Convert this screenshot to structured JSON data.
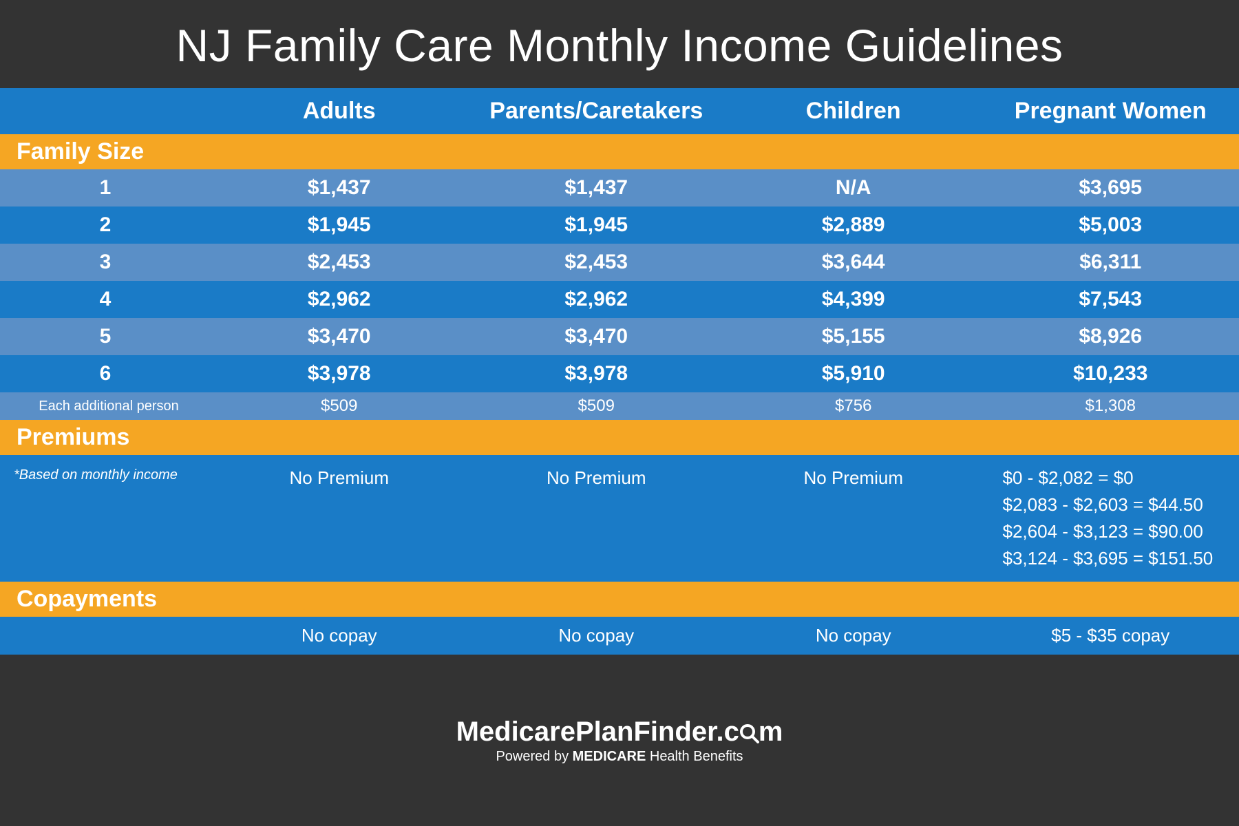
{
  "title": "NJ Family Care Monthly Income Guidelines",
  "columns": [
    "Adults",
    "Parents/Caretakers",
    "Children",
    "Pregnant Women"
  ],
  "sections": {
    "family_size": {
      "label": "Family Size",
      "rows": [
        {
          "label": "1",
          "values": [
            "$1,437",
            "$1,437",
            "N/A",
            "$3,695"
          ]
        },
        {
          "label": "2",
          "values": [
            "$1,945",
            "$1,945",
            "$2,889",
            "$5,003"
          ]
        },
        {
          "label": "3",
          "values": [
            "$2,453",
            "$2,453",
            "$3,644",
            "$6,311"
          ]
        },
        {
          "label": "4",
          "values": [
            "$2,962",
            "$2,962",
            "$4,399",
            "$7,543"
          ]
        },
        {
          "label": "5",
          "values": [
            "$3,470",
            "$3,470",
            "$5,155",
            "$8,926"
          ]
        },
        {
          "label": "6",
          "values": [
            "$3,978",
            "$3,978",
            "$5,910",
            "$10,233"
          ]
        }
      ],
      "additional": {
        "label": "Each additional person",
        "values": [
          "$509",
          "$509",
          "$756",
          "$1,308"
        ]
      }
    },
    "premiums": {
      "label": "Premiums",
      "note": "*Based on monthly income",
      "values": [
        "No Premium",
        "No Premium",
        "No Premium",
        "$0 - $2,082 = $0\n$2,083 - $2,603 = $44.50\n$2,604 - $3,123 = $90.00\n$3,124 - $3,695 = $151.50"
      ]
    },
    "copayments": {
      "label": "Copayments",
      "values": [
        "No copay",
        "No copay",
        "No copay",
        "$5 - $35 copay"
      ]
    }
  },
  "footer": {
    "brand_pre": "MedicarePlanFinder.c",
    "brand_post": "m",
    "sub_pre": "Powered by ",
    "sub_bold": "MEDICARE",
    "sub_post": " Health Benefits"
  },
  "colors": {
    "page_bg": "#333333",
    "header_blue": "#1a7bc7",
    "row_light": "#5a8fc7",
    "section_orange": "#f5a623",
    "text": "#ffffff"
  }
}
